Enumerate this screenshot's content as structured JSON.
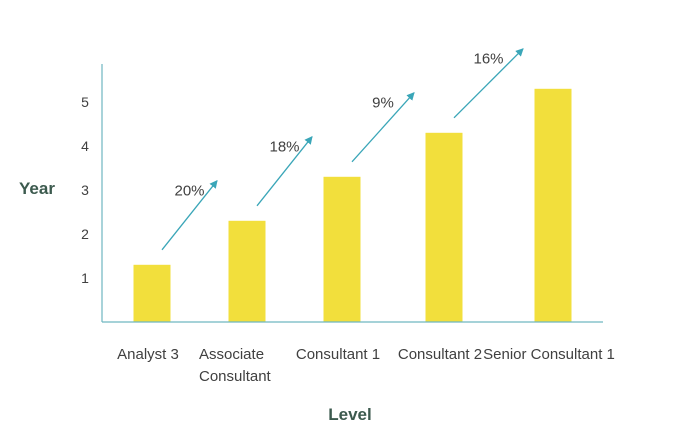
{
  "chart_data": {
    "type": "bar",
    "xlabel": "Level",
    "ylabel": "Year",
    "categories": [
      "Analyst 3",
      "Associate Consultant",
      "Consultant 1",
      "Consultant 2",
      "Senior Consultant 1"
    ],
    "category_lines": [
      [
        "Analyst 3"
      ],
      [
        "Associate",
        "Consultant"
      ],
      [
        "Consultant 1"
      ],
      [
        "Consultant 2"
      ],
      [
        "Senior Consultant 1"
      ]
    ],
    "values": [
      1.3,
      2.3,
      3.3,
      4.3,
      5.3
    ],
    "ylim": [
      0,
      6
    ],
    "yticks": [
      1,
      2,
      3,
      4,
      5
    ],
    "grid": false,
    "annotations": [
      "20%",
      "18%",
      "9%",
      "16%"
    ],
    "colors": {
      "bar": "#f2df3c",
      "axis": "#6fb6c0",
      "arrow": "#3aa6b8"
    }
  }
}
